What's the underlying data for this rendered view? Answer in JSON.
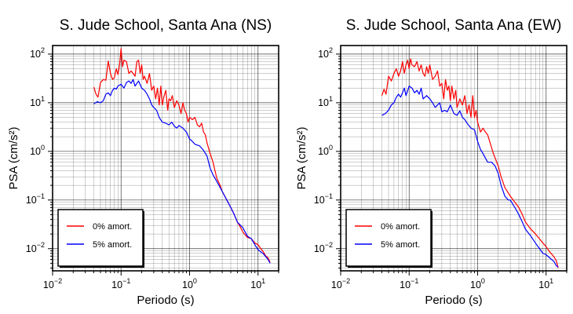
{
  "colors": {
    "series0": "#ff0000",
    "series1": "#0000ff",
    "grid": "#000000",
    "frame": "#000000"
  },
  "chart_data": [
    {
      "type": "line",
      "title": "S. Jude School, Santa Ana (NS)",
      "xlabel": "Periodo (s)",
      "ylabel": "PSA (cm/s²)",
      "xscale": "log",
      "yscale": "log",
      "xlim": [
        0.01,
        20
      ],
      "ylim": [
        0.0035,
        150
      ],
      "grid": true,
      "legend_position": "bottom-left",
      "xticks": [
        {
          "base": "10",
          "exp": "−2",
          "value": 0.01
        },
        {
          "base": "10",
          "exp": "−1",
          "value": 0.1
        },
        {
          "base": "10",
          "exp": "0",
          "value": 1
        },
        {
          "base": "10",
          "exp": "1",
          "value": 10
        }
      ],
      "yticks": [
        {
          "base": "10",
          "exp": "−2",
          "value": 0.01
        },
        {
          "base": "10",
          "exp": "−1",
          "value": 0.1
        },
        {
          "base": "10",
          "exp": "0",
          "value": 1
        },
        {
          "base": "10",
          "exp": "1",
          "value": 10
        },
        {
          "base": "10",
          "exp": "2",
          "value": 100
        }
      ],
      "series": [
        {
          "name": "0% amort.",
          "x": [
            0.04,
            0.043,
            0.046,
            0.05,
            0.055,
            0.06,
            0.065,
            0.07,
            0.075,
            0.08,
            0.085,
            0.09,
            0.095,
            0.1,
            0.105,
            0.11,
            0.12,
            0.13,
            0.14,
            0.15,
            0.16,
            0.17,
            0.18,
            0.19,
            0.2,
            0.21,
            0.22,
            0.24,
            0.26,
            0.28,
            0.3,
            0.32,
            0.34,
            0.36,
            0.38,
            0.4,
            0.42,
            0.45,
            0.48,
            0.5,
            0.53,
            0.56,
            0.6,
            0.65,
            0.7,
            0.75,
            0.8,
            0.85,
            0.9,
            0.95,
            1.0,
            1.1,
            1.2,
            1.3,
            1.4,
            1.5,
            1.6,
            1.7,
            1.8,
            2.0,
            2.2,
            2.5,
            2.8,
            3.0,
            3.5,
            4.0,
            4.5,
            5.0,
            5.5,
            6.0,
            7.0,
            8.0,
            9.0,
            10.0,
            11.0,
            12.0,
            13.0,
            14.0,
            15.0
          ],
          "y": [
            21,
            15,
            13,
            26,
            30,
            29,
            72,
            40,
            30,
            33,
            50,
            38,
            60,
            130,
            55,
            75,
            70,
            40,
            45,
            40,
            35,
            70,
            75,
            40,
            60,
            30,
            35,
            25,
            40,
            18,
            22,
            12,
            20,
            9,
            22,
            9,
            13,
            18,
            7,
            12,
            11,
            14,
            8,
            11,
            9,
            6,
            10,
            7,
            6,
            4,
            5,
            4.5,
            5,
            3.5,
            3.2,
            3.8,
            2.5,
            2.2,
            1.5,
            0.9,
            0.6,
            0.28,
            0.2,
            0.15,
            0.1,
            0.07,
            0.05,
            0.035,
            0.028,
            0.022,
            0.017,
            0.016,
            0.013,
            0.012,
            0.01,
            0.0085,
            0.007,
            0.0065,
            0.0052
          ]
        },
        {
          "name": "5% amort.",
          "x": [
            0.04,
            0.045,
            0.05,
            0.055,
            0.06,
            0.065,
            0.07,
            0.075,
            0.08,
            0.085,
            0.09,
            0.1,
            0.11,
            0.12,
            0.13,
            0.14,
            0.15,
            0.16,
            0.18,
            0.2,
            0.22,
            0.24,
            0.26,
            0.28,
            0.3,
            0.33,
            0.36,
            0.4,
            0.45,
            0.5,
            0.55,
            0.6,
            0.65,
            0.7,
            0.8,
            0.9,
            1.0,
            1.1,
            1.2,
            1.4,
            1.6,
            1.8,
            2.0,
            2.2,
            2.5,
            2.8,
            3.0,
            3.5,
            4.0,
            4.5,
            5.0,
            6.0,
            7.0,
            8.0,
            9.0,
            10.0,
            12.0,
            13.0,
            14.0,
            15.0
          ],
          "y": [
            9.5,
            10.5,
            10,
            11,
            15,
            16,
            14,
            18,
            20,
            19,
            22,
            24,
            20,
            26,
            28,
            25,
            30,
            22,
            28,
            20,
            18,
            15,
            12,
            9,
            8,
            7,
            5,
            4,
            3.8,
            3.5,
            4,
            3.3,
            3.0,
            3.4,
            3.0,
            2.5,
            1.8,
            1.6,
            1.4,
            1.3,
            1.05,
            0.8,
            0.45,
            0.33,
            0.24,
            0.18,
            0.15,
            0.1,
            0.07,
            0.05,
            0.035,
            0.027,
            0.018,
            0.016,
            0.012,
            0.0095,
            0.0078,
            0.0068,
            0.006,
            0.005
          ]
        }
      ]
    },
    {
      "type": "line",
      "title": "S. Jude School, Santa Ana (EW)",
      "xlabel": "Periodo (s)",
      "ylabel": "PSA (cm/s²)",
      "xscale": "log",
      "yscale": "log",
      "xlim": [
        0.01,
        20
      ],
      "ylim": [
        0.0035,
        150
      ],
      "grid": true,
      "legend_position": "bottom-left",
      "xticks": [
        {
          "base": "10",
          "exp": "−2",
          "value": 0.01
        },
        {
          "base": "10",
          "exp": "−1",
          "value": 0.1
        },
        {
          "base": "10",
          "exp": "0",
          "value": 1
        },
        {
          "base": "10",
          "exp": "1",
          "value": 10
        }
      ],
      "yticks": [
        {
          "base": "10",
          "exp": "−2",
          "value": 0.01
        },
        {
          "base": "10",
          "exp": "−1",
          "value": 0.1
        },
        {
          "base": "10",
          "exp": "0",
          "value": 1
        },
        {
          "base": "10",
          "exp": "1",
          "value": 10
        },
        {
          "base": "10",
          "exp": "2",
          "value": 100
        }
      ],
      "series": [
        {
          "name": "0% amort.",
          "x": [
            0.04,
            0.043,
            0.046,
            0.05,
            0.055,
            0.06,
            0.065,
            0.07,
            0.075,
            0.08,
            0.085,
            0.09,
            0.095,
            0.1,
            0.105,
            0.11,
            0.12,
            0.13,
            0.14,
            0.15,
            0.16,
            0.17,
            0.18,
            0.19,
            0.2,
            0.22,
            0.24,
            0.26,
            0.28,
            0.3,
            0.32,
            0.34,
            0.36,
            0.38,
            0.4,
            0.42,
            0.45,
            0.48,
            0.5,
            0.55,
            0.6,
            0.65,
            0.7,
            0.75,
            0.8,
            0.85,
            0.9,
            0.95,
            1.0,
            1.1,
            1.2,
            1.3,
            1.4,
            1.5,
            1.7,
            2.0,
            2.2,
            2.5,
            2.8,
            3.0,
            3.5,
            4.0,
            4.5,
            5.0,
            6.0,
            7.0,
            8.0,
            9.0,
            10.0,
            11.0,
            12.0,
            13.0,
            14.0,
            15.0
          ],
          "y": [
            14,
            19,
            15,
            35,
            28,
            40,
            50,
            35,
            45,
            70,
            40,
            60,
            75,
            50,
            80,
            60,
            55,
            70,
            45,
            60,
            40,
            35,
            55,
            40,
            60,
            30,
            35,
            45,
            22,
            25,
            12,
            30,
            18,
            22,
            11,
            22,
            12,
            18,
            8,
            12,
            9,
            14,
            6,
            9,
            5,
            14,
            5,
            7,
            4,
            2.5,
            3.0,
            2.5,
            2.2,
            1.6,
            0.9,
            0.5,
            0.3,
            0.18,
            0.14,
            0.12,
            0.09,
            0.07,
            0.05,
            0.035,
            0.025,
            0.02,
            0.016,
            0.013,
            0.011,
            0.009,
            0.0078,
            0.0068,
            0.0058,
            0.004
          ]
        },
        {
          "name": "5% amort.",
          "x": [
            0.04,
            0.045,
            0.05,
            0.055,
            0.06,
            0.065,
            0.07,
            0.075,
            0.08,
            0.085,
            0.09,
            0.1,
            0.11,
            0.12,
            0.13,
            0.14,
            0.15,
            0.16,
            0.18,
            0.2,
            0.22,
            0.24,
            0.26,
            0.28,
            0.3,
            0.33,
            0.36,
            0.4,
            0.45,
            0.5,
            0.55,
            0.6,
            0.65,
            0.7,
            0.8,
            0.9,
            1.0,
            1.1,
            1.2,
            1.4,
            1.6,
            1.8,
            2.0,
            2.2,
            2.5,
            2.8,
            3.0,
            3.5,
            4.0,
            4.5,
            5.0,
            6.0,
            7.0,
            8.0,
            9.0,
            10.0,
            12.0,
            13.0,
            14.0,
            15.0
          ],
          "y": [
            5.5,
            6,
            7,
            9,
            10,
            13,
            15,
            13,
            16,
            20,
            14,
            22,
            20,
            16,
            18,
            15,
            20,
            12,
            14,
            12,
            10,
            8,
            9,
            10,
            6.5,
            7,
            6.5,
            9,
            6,
            5.5,
            6.8,
            5,
            4.5,
            3.8,
            3.0,
            2.8,
            1.6,
            1.1,
            0.9,
            0.6,
            0.6,
            0.5,
            0.35,
            0.2,
            0.12,
            0.1,
            0.1,
            0.07,
            0.05,
            0.035,
            0.025,
            0.018,
            0.013,
            0.01,
            0.008,
            0.0075,
            0.006,
            0.0055,
            0.0045,
            0.0042
          ]
        }
      ]
    }
  ]
}
